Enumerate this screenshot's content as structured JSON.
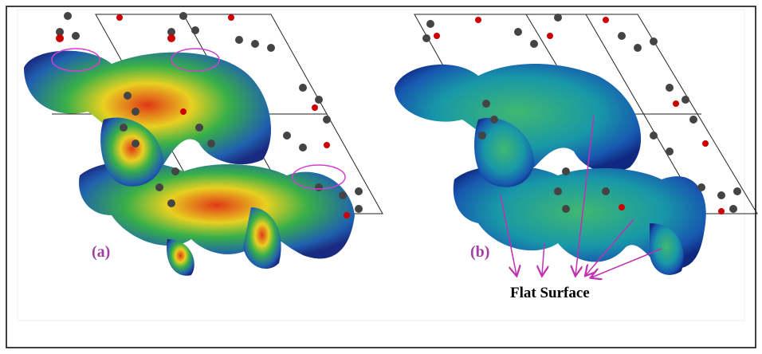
{
  "panels": [
    {
      "label": "(a)"
    },
    {
      "label": "(b)"
    }
  ],
  "annotation": "Flat Surface"
}
